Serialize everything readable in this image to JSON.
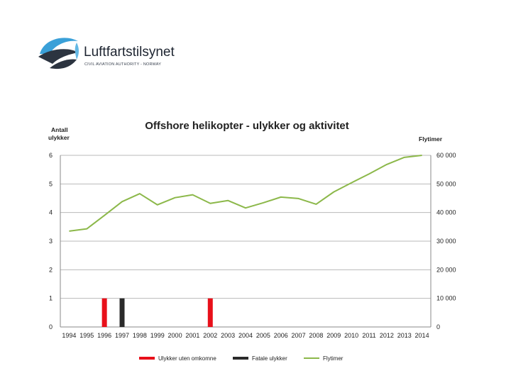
{
  "brand": {
    "name": "Luftfartstilsynet",
    "subtitle": "CIVIL AVIATION AUTHORITY - NORWAY"
  },
  "colors": {
    "accident_no_fatal": "#e8101a",
    "fatal": "#2a2a2a",
    "flight_hours": "#8cb84a",
    "grid": "#b9b9b9",
    "logo_blue": "#3aa0d8",
    "logo_dark": "#2c3440"
  },
  "chart_data": {
    "type": "bar",
    "title": "Offshore helikopter - ulykker og aktivitet",
    "left_axis_label": [
      "Antall",
      "ulykker"
    ],
    "right_axis_label": "Flytimer",
    "ylim": [
      0,
      6
    ],
    "yticks_left": [
      "0",
      "1",
      "2",
      "3",
      "4",
      "5",
      "6"
    ],
    "y2lim": [
      0,
      60000
    ],
    "yticks_right": [
      "0",
      "10 000",
      "20 000",
      "30 000",
      "40 000",
      "50 000",
      "60 000"
    ],
    "grid": true,
    "legend_position": "bottom",
    "categories": [
      "1994",
      "1995",
      "1996",
      "1997",
      "1998",
      "1999",
      "2000",
      "2001",
      "2002",
      "2003",
      "2004",
      "2005",
      "2006",
      "2007",
      "2008",
      "2009",
      "2010",
      "2011",
      "2012",
      "2013",
      "2014"
    ],
    "series": [
      {
        "name": "Ulykker uten omkomne",
        "type": "bar",
        "axis": "left",
        "color_key": "accident_no_fatal",
        "values": [
          0,
          0,
          1,
          0,
          0,
          0,
          0,
          0,
          1,
          0,
          0,
          0,
          0,
          0,
          0,
          0,
          0,
          0,
          0,
          0,
          0
        ]
      },
      {
        "name": "Fatale ulykker",
        "type": "bar",
        "axis": "left",
        "color_key": "fatal",
        "values": [
          0,
          0,
          0,
          1,
          0,
          0,
          0,
          0,
          0,
          0,
          0,
          0,
          0,
          0,
          0,
          0,
          0,
          0,
          0,
          0,
          0
        ]
      },
      {
        "name": "Flytimer",
        "type": "line",
        "axis": "right",
        "color_key": "flight_hours",
        "values": [
          33500,
          34300,
          39000,
          43800,
          46600,
          42700,
          45200,
          46200,
          43200,
          44200,
          41600,
          43400,
          45400,
          44900,
          42900,
          47200,
          50400,
          53500,
          56800,
          59300,
          60000
        ]
      }
    ]
  }
}
